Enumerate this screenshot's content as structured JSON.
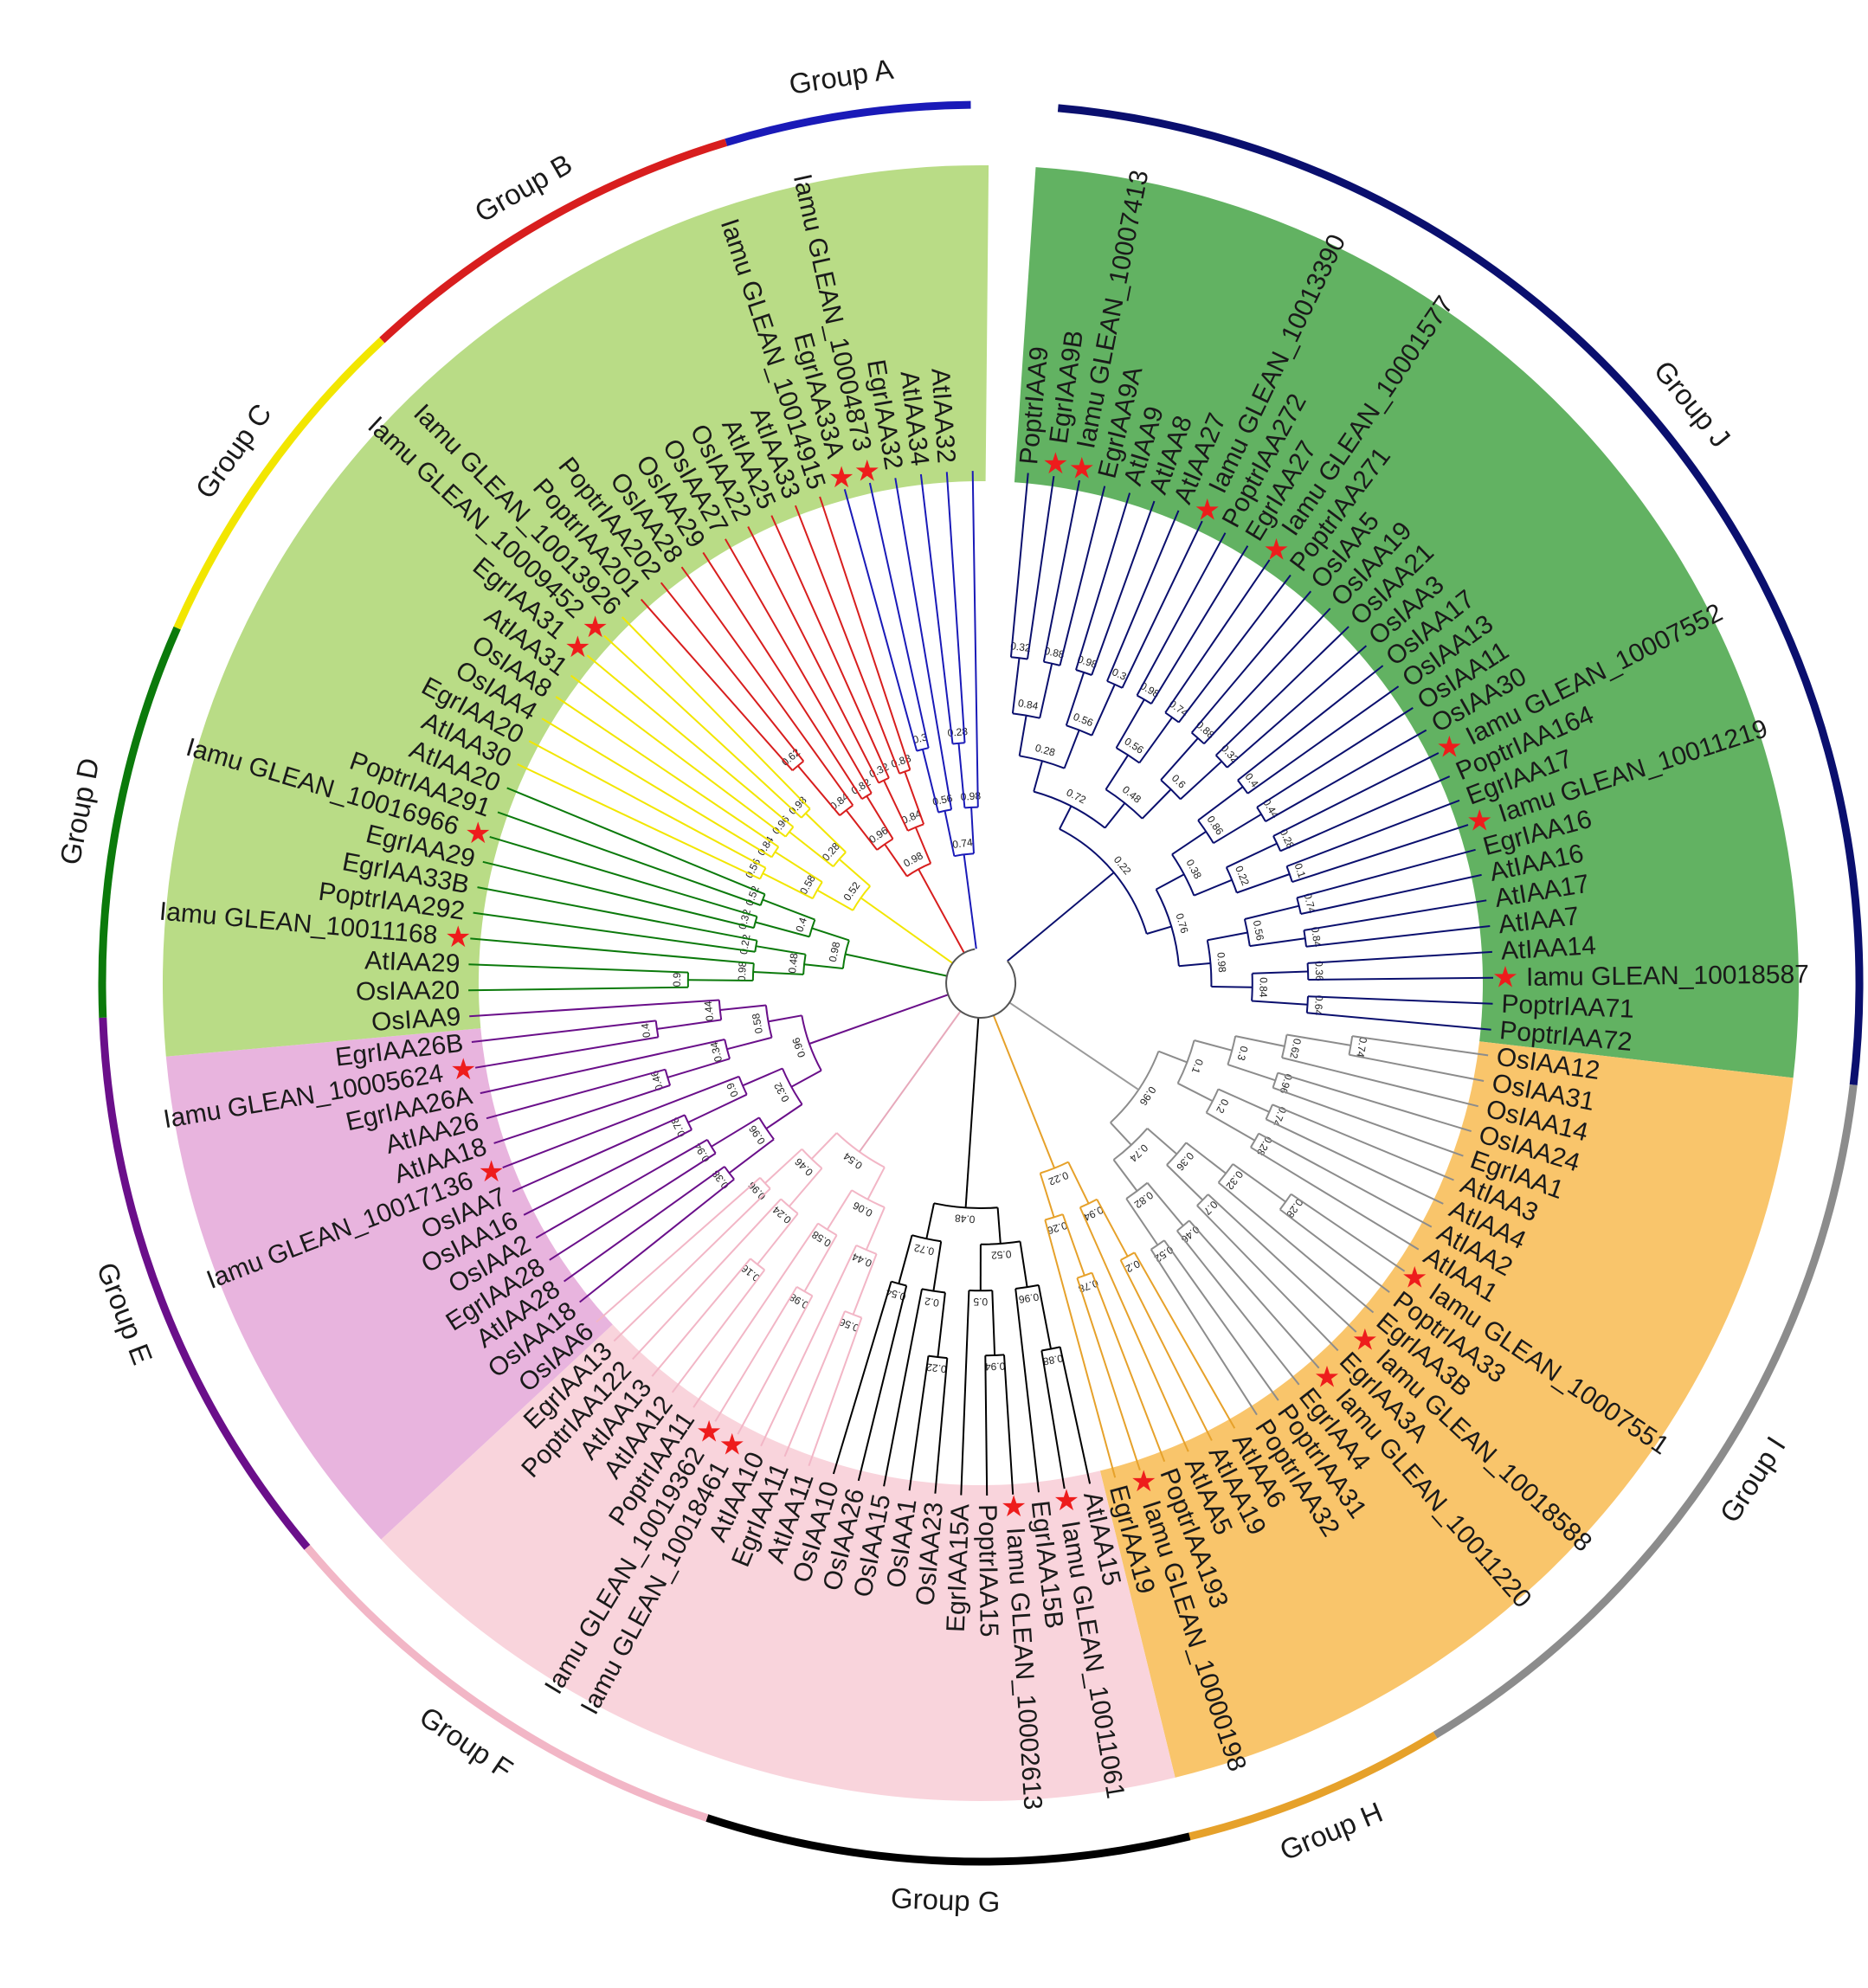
{
  "colors": {
    "group_A": "#1a1ab8",
    "group_B": "#d81e1e",
    "group_C": "#f2e600",
    "group_D": "#0b7a0b",
    "group_E": "#6a0f8a",
    "group_F": "#f2b6c6",
    "group_G": "#000000",
    "group_H": "#e6a12a",
    "group_I": "#8c8c8c",
    "group_J": "#0a0f6e",
    "bg_light_green": "#b9dc86",
    "bg_dark_green": "#62b262",
    "bg_pink_E": "#e8b4de",
    "bg_pink_F": "#f9d4dc",
    "bg_orange": "#f9c56b",
    "star": "#ee1c1c"
  },
  "groups": [
    {
      "label": "Group A",
      "color": "#1a1ab8"
    },
    {
      "label": "Group B",
      "color": "#d81e1e"
    },
    {
      "label": "Group C",
      "color": "#f2e600"
    },
    {
      "label": "Group D",
      "color": "#0b7a0b"
    },
    {
      "label": "Group E",
      "color": "#6a0f8a"
    },
    {
      "label": "Group F",
      "color": "#f2b6c6"
    },
    {
      "label": "Group G",
      "color": "#000000"
    },
    {
      "label": "Group H",
      "color": "#e6a12a"
    },
    {
      "label": "Group I",
      "color": "#8c8c8c"
    },
    {
      "label": "Group J",
      "color": "#0a0f6e"
    }
  ],
  "leaves": [
    {
      "name": "PoptrIAA9",
      "star": false
    },
    {
      "name": "EgrIAA9B",
      "star": true
    },
    {
      "name": "Iamu GLEAN_10007413",
      "star": true
    },
    {
      "name": "EgrIAA9A",
      "star": false
    },
    {
      "name": "AtIAA9",
      "star": false
    },
    {
      "name": "AtIAA8",
      "star": false
    },
    {
      "name": "AtIAA27",
      "star": false
    },
    {
      "name": "Iamu GLEAN_10013390",
      "star": true
    },
    {
      "name": "PoptrIAA272",
      "star": false
    },
    {
      "name": "EgrIAA27",
      "star": false
    },
    {
      "name": "Iamu GLEAN_10001577",
      "star": true
    },
    {
      "name": "PoptrIAA271",
      "star": false
    },
    {
      "name": "OsIAA5",
      "star": false
    },
    {
      "name": "OsIAA19",
      "star": false
    },
    {
      "name": "OsIAA21",
      "star": false
    },
    {
      "name": "OsIAA3",
      "star": false
    },
    {
      "name": "OsIAA17",
      "star": false
    },
    {
      "name": "OsIAA13",
      "star": false
    },
    {
      "name": "OsIAA11",
      "star": false
    },
    {
      "name": "OsIAA30",
      "star": false
    },
    {
      "name": "Iamu GLEAN_10007552",
      "star": true
    },
    {
      "name": "PoptrIAA164",
      "star": false
    },
    {
      "name": "EgrIAA17",
      "star": false
    },
    {
      "name": "Iamu GLEAN_10011219",
      "star": true
    },
    {
      "name": "EgrIAA16",
      "star": false
    },
    {
      "name": "AtIAA16",
      "star": false
    },
    {
      "name": "AtIAA17",
      "star": false
    },
    {
      "name": "AtIAA7",
      "star": false
    },
    {
      "name": "AtIAA14",
      "star": false
    },
    {
      "name": "Iamu GLEAN_10018587",
      "star": true
    },
    {
      "name": "PoptrIAA71",
      "star": false
    },
    {
      "name": "PoptrIAA72",
      "star": false
    },
    {
      "name": "OsIAA12",
      "star": false
    },
    {
      "name": "OsIAA31",
      "star": false
    },
    {
      "name": "OsIAA14",
      "star": false
    },
    {
      "name": "OsIAA24",
      "star": false
    },
    {
      "name": "EgrIAA1",
      "star": false
    },
    {
      "name": "AtIAA3",
      "star": false
    },
    {
      "name": "AtIAA4",
      "star": false
    },
    {
      "name": "AtIAA2",
      "star": false
    },
    {
      "name": "AtIAA1",
      "star": false
    },
    {
      "name": "Iamu GLEAN_10007551",
      "star": true
    },
    {
      "name": "PoptrIAA33",
      "star": false
    },
    {
      "name": "EgrIAA3B",
      "star": false
    },
    {
      "name": "Iamu GLEAN_10018588",
      "star": true
    },
    {
      "name": "EgrIAA3A",
      "star": false
    },
    {
      "name": "Iamu GLEAN_10011220",
      "star": true
    },
    {
      "name": "EgrIAA4",
      "star": false
    },
    {
      "name": "PoptrIAA31",
      "star": false
    },
    {
      "name": "PoptrIAA32",
      "star": false
    },
    {
      "name": "AtIAA6",
      "star": false
    },
    {
      "name": "AtIAA19",
      "star": false
    },
    {
      "name": "AtIAA5",
      "star": false
    },
    {
      "name": "PoptrIAA193",
      "star": false
    },
    {
      "name": "Iamu GLEAN_10000198",
      "star": true
    },
    {
      "name": "EgrIAA19",
      "star": false
    },
    {
      "name": "AtIAA15",
      "star": false
    },
    {
      "name": "Iamu GLEAN_10011061",
      "star": true
    },
    {
      "name": "EgrIAA15B",
      "star": false
    },
    {
      "name": "Iamu GLEAN_10002613",
      "star": true
    },
    {
      "name": "PoptrIAA15",
      "star": false
    },
    {
      "name": "EgrIAA15A",
      "star": false
    },
    {
      "name": "OsIAA23",
      "star": false
    },
    {
      "name": "OsIAA1",
      "star": false
    },
    {
      "name": "OsIAA15",
      "star": false
    },
    {
      "name": "OsIAA26",
      "star": false
    },
    {
      "name": "OsIAA10",
      "star": false
    },
    {
      "name": "AtIAA11",
      "star": false
    },
    {
      "name": "EgrIAA11",
      "star": false
    },
    {
      "name": "AtIAA10",
      "star": false
    },
    {
      "name": "Iamu GLEAN_10018461",
      "star": true
    },
    {
      "name": "Iamu GLEAN_10019362",
      "star": true
    },
    {
      "name": "PoptrIAA11",
      "star": false
    },
    {
      "name": "AtIAA12",
      "star": false
    },
    {
      "name": "AtIAA13",
      "star": false
    },
    {
      "name": "PoptrIAA122",
      "star": false
    },
    {
      "name": "EgrIAA13",
      "star": false
    },
    {
      "name": "OsIAA6",
      "star": false
    },
    {
      "name": "OsIAA18",
      "star": false
    },
    {
      "name": "AtIAA28",
      "star": false
    },
    {
      "name": "EgrIAA28",
      "star": false
    },
    {
      "name": "OsIAA2",
      "star": false
    },
    {
      "name": "OsIAA16",
      "star": false
    },
    {
      "name": "OsIAA7",
      "star": false
    },
    {
      "name": "Iamu GLEAN_10017136",
      "star": true
    },
    {
      "name": "AtIAA18",
      "star": false
    },
    {
      "name": "AtIAA26",
      "star": false
    },
    {
      "name": "EgrIAA26A",
      "star": false
    },
    {
      "name": "Iamu GLEAN_10005624",
      "star": true
    },
    {
      "name": "EgrIAA26B",
      "star": false
    },
    {
      "name": "OsIAA9",
      "star": false
    },
    {
      "name": "OsIAA20",
      "star": false
    },
    {
      "name": "AtIAA29",
      "star": false
    },
    {
      "name": "Iamu GLEAN_10011168",
      "star": true
    },
    {
      "name": "PoptrIAA292",
      "star": false
    },
    {
      "name": "EgrIAA33B",
      "star": false
    },
    {
      "name": "EgrIAA29",
      "star": false
    },
    {
      "name": "Iamu GLEAN_10016966",
      "star": true
    },
    {
      "name": "PoptrIAA291",
      "star": false
    },
    {
      "name": "AtIAA20",
      "star": false
    },
    {
      "name": "AtIAA30",
      "star": false
    },
    {
      "name": "EgrIAA20",
      "star": false
    },
    {
      "name": "OsIAA4",
      "star": false
    },
    {
      "name": "OsIAA8",
      "star": false
    },
    {
      "name": "AtIAA31",
      "star": false
    },
    {
      "name": "EgrIAA31",
      "star": true
    },
    {
      "name": "Iamu GLEAN_10009452",
      "star": true
    },
    {
      "name": "Iamu GLEAN_10013926",
      "star": false
    },
    {
      "name": "PoptrIAA201",
      "star": false
    },
    {
      "name": "PoptrIAA202",
      "star": false
    },
    {
      "name": "OsIAA28",
      "star": false
    },
    {
      "name": "OsIAA29",
      "star": false
    },
    {
      "name": "OsIAA27",
      "star": false
    },
    {
      "name": "OsIAA22",
      "star": false
    },
    {
      "name": "AtIAA25",
      "star": false
    },
    {
      "name": "AtIAA33",
      "star": false
    },
    {
      "name": "Iamu GLEAN_10014915",
      "star": false
    },
    {
      "name": "EgrIAA33A",
      "star": true
    },
    {
      "name": "Iamu GLEAN_10004873",
      "star": true
    },
    {
      "name": "EgrIAA32",
      "star": false
    },
    {
      "name": "AtIAA34",
      "star": false
    },
    {
      "name": "AtIAA32",
      "star": false
    }
  ],
  "support_values": [
    "0.32",
    "0.88",
    "0.84",
    "0.98",
    "0.3",
    "0.56",
    "0.28",
    "0.98",
    "0.74",
    "0.56",
    "0.88",
    "0.32",
    "0.6",
    "0.48",
    "0.72",
    "0.4",
    "0.44",
    "0.86",
    "0.28",
    "0.1",
    "0.22",
    "0.38",
    "0.74",
    "0.84",
    "0.56",
    "0.36",
    "0.64",
    "0.84",
    "0.98",
    "0.76",
    "0.22",
    "0.74",
    "0.62",
    "0.96",
    "0.3",
    "0.74",
    "0.28",
    "0.2",
    "0.1",
    "0.28",
    "0.32",
    "0.7",
    "0.36",
    "0.46",
    "0.52",
    "0.82",
    "0.74",
    "0.96",
    "0.2",
    "0.94",
    "0.78",
    "0.26",
    "0.22",
    "0.88",
    "0.96",
    "0.94",
    "0.5",
    "0.52",
    "0.22",
    "0.2",
    "0.54",
    "0.72",
    "0.48",
    "0.56",
    "0.44",
    "0.98",
    "0.58",
    "0.06",
    "0.16",
    "0.24",
    "0.96",
    "0.46",
    "0.54",
    "0.38",
    "0.94",
    "0.96",
    "0.78",
    "0.9",
    "0.32",
    "0.46",
    "0.34",
    "0.4",
    "0.44",
    "0.58",
    "0.96",
    "0.9",
    "0.98",
    "0.22",
    "0.48",
    "0.32",
    "0.52",
    "0.4",
    "0.98",
    "0.56",
    "0.84",
    "0.58",
    "0.96",
    "0.98",
    "0.28",
    "0.52",
    "0.62",
    "0.84",
    "0.82",
    "0.96"
  ]
}
